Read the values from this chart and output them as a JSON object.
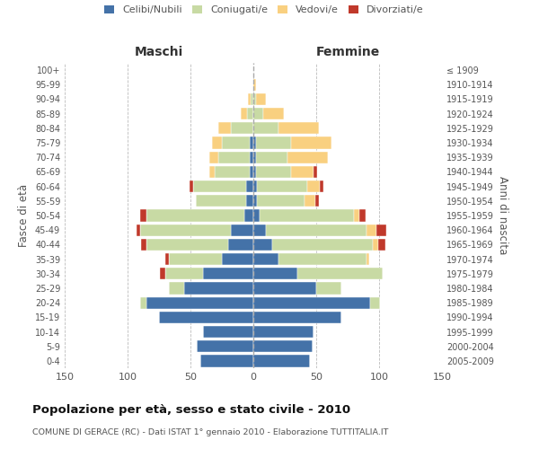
{
  "age_groups": [
    "0-4",
    "5-9",
    "10-14",
    "15-19",
    "20-24",
    "25-29",
    "30-34",
    "35-39",
    "40-44",
    "45-49",
    "50-54",
    "55-59",
    "60-64",
    "65-69",
    "70-74",
    "75-79",
    "80-84",
    "85-89",
    "90-94",
    "95-99",
    "100+"
  ],
  "birth_years": [
    "2005-2009",
    "2000-2004",
    "1995-1999",
    "1990-1994",
    "1985-1989",
    "1980-1984",
    "1975-1979",
    "1970-1974",
    "1965-1969",
    "1960-1964",
    "1955-1959",
    "1950-1954",
    "1945-1949",
    "1940-1944",
    "1935-1939",
    "1930-1934",
    "1925-1929",
    "1920-1924",
    "1915-1919",
    "1910-1914",
    "≤ 1909"
  ],
  "maschi": {
    "celibi": [
      42,
      45,
      40,
      75,
      85,
      55,
      40,
      25,
      20,
      18,
      7,
      6,
      6,
      3,
      3,
      3,
      0,
      0,
      0,
      0,
      0
    ],
    "coniugati": [
      0,
      0,
      0,
      0,
      5,
      12,
      30,
      42,
      65,
      72,
      78,
      40,
      42,
      28,
      25,
      22,
      18,
      5,
      2,
      0,
      0
    ],
    "vedovi": [
      0,
      0,
      0,
      0,
      0,
      0,
      0,
      0,
      0,
      0,
      0,
      0,
      0,
      4,
      7,
      8,
      10,
      5,
      2,
      0,
      0
    ],
    "divorziati": [
      0,
      0,
      0,
      0,
      0,
      0,
      4,
      3,
      4,
      3,
      5,
      0,
      3,
      0,
      0,
      0,
      0,
      0,
      0,
      0,
      0
    ]
  },
  "femmine": {
    "nubili": [
      45,
      47,
      48,
      70,
      93,
      50,
      35,
      20,
      15,
      10,
      5,
      3,
      3,
      2,
      2,
      2,
      0,
      0,
      0,
      0,
      0
    ],
    "coniugate": [
      0,
      0,
      0,
      0,
      8,
      20,
      68,
      70,
      80,
      80,
      75,
      38,
      40,
      28,
      25,
      28,
      20,
      8,
      2,
      0,
      0
    ],
    "vedove": [
      0,
      0,
      0,
      0,
      0,
      0,
      0,
      2,
      4,
      8,
      4,
      8,
      10,
      18,
      32,
      32,
      32,
      16,
      8,
      2,
      0
    ],
    "divorziate": [
      0,
      0,
      0,
      0,
      0,
      0,
      0,
      0,
      6,
      8,
      5,
      3,
      3,
      3,
      0,
      0,
      0,
      0,
      0,
      0,
      0
    ]
  },
  "colors": {
    "celibi": "#4472a8",
    "coniugati": "#c8daa4",
    "vedovi": "#f9d080",
    "divorziati": "#c0392b"
  },
  "xlim": 150,
  "title": "Popolazione per età, sesso e stato civile - 2010",
  "subtitle": "COMUNE DI GERACE (RC) - Dati ISTAT 1° gennaio 2010 - Elaborazione TUTTITALIA.IT",
  "ylabel_left": "Fasce di età",
  "ylabel_right": "Anni di nascita",
  "xlabel_left": "Maschi",
  "xlabel_right": "Femmine",
  "bg_color": "#ffffff",
  "grid_color": "#bbbbbb"
}
